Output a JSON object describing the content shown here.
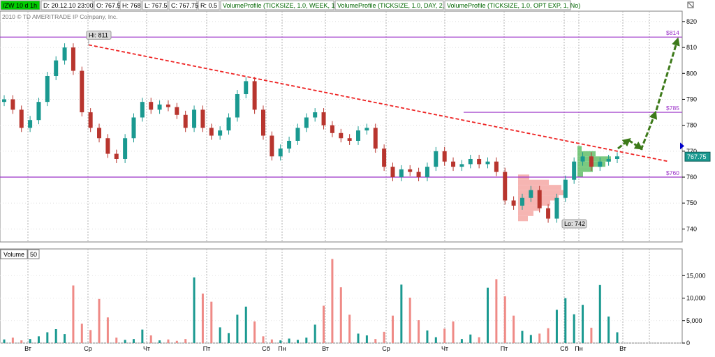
{
  "header": {
    "fields": [
      {
        "text": "/ZW 10 d 1h",
        "color": "#000000",
        "bg": "#00cc00"
      },
      {
        "text": "D: 20.12.10 23:00",
        "color": "#000000",
        "bg": "#ffffff"
      },
      {
        "text": "O: 767.5",
        "color": "#000000",
        "bg": "#ffffff"
      },
      {
        "text": "H: 768",
        "color": "#000000",
        "bg": "#ffffff"
      },
      {
        "text": "L: 767.5",
        "color": "#000000",
        "bg": "#ffffff"
      },
      {
        "text": "C: 767.75",
        "color": "#000000",
        "bg": "#ffffff"
      },
      {
        "text": "R: 0.5",
        "color": "#000000",
        "bg": "#ffffff"
      },
      {
        "text": "VolumeProfile (TICKSIZE, 1.0, WEEK, 1, No)",
        "color": "#006600",
        "bg": "#ffffff"
      },
      {
        "text": "VolumeProfile (TICKSIZE, 1.0, DAY, 2, No)",
        "color": "#006600",
        "bg": "#ffffff"
      },
      {
        "text": "VolumeProfile (TICKSIZE, 1.0, OPT EXP, 1, No)",
        "color": "#006600",
        "bg": "#ffffff"
      }
    ]
  },
  "copyright": "2010 © TD AMERITRADE IP Company, Inc.",
  "volume_panel": {
    "label": "Volume",
    "count": "50"
  },
  "colors": {
    "grid": "#b0b0b0",
    "up": "#1a9990",
    "down": "#b8352e",
    "vol_up": "#1a9990",
    "vol_down": "#ef8a86",
    "levels": "#9b30c8",
    "trend": "#ee2222",
    "arrow": "#3d7a1a",
    "profile_red": "#f5a8a4",
    "profile_green": "#63c06a"
  },
  "chart_data": [
    {
      "type": "candlestick",
      "title": "/ZW 10 d 1h",
      "x_tick_labels": [
        "Вт",
        "Ср",
        "Чт",
        "Пт",
        "Сб",
        "Пн",
        "Вт",
        "Ср",
        "Чт",
        "Пт",
        "Сб",
        "Пн",
        "Вт"
      ],
      "ylim": [
        735,
        824
      ],
      "y_tick_labels": [
        "740",
        "750",
        "760",
        "770",
        "780",
        "790",
        "800",
        "810",
        "820"
      ],
      "series": [
        {
          "name": "price",
          "close": [
            790,
            786,
            779,
            782,
            789,
            799,
            805,
            810,
            801,
            785,
            779,
            775,
            769,
            767,
            775,
            783,
            789,
            786,
            788,
            787,
            784,
            779,
            786,
            779,
            776,
            778,
            783,
            792,
            797,
            786,
            776,
            768,
            771,
            774,
            779,
            783,
            785,
            780,
            777,
            775,
            774,
            778,
            779,
            771,
            764,
            760,
            763,
            762,
            760,
            764,
            770,
            766,
            764,
            765,
            767,
            765,
            766,
            762,
            751,
            749,
            752,
            755,
            748,
            744,
            752,
            759,
            766,
            768,
            764,
            766,
            767,
            768
          ]
        },
        {
          "name": "$814",
          "value": 814
        },
        {
          "name": "$785",
          "value": 785
        },
        {
          "name": "$760",
          "value": 760
        },
        {
          "name": "last",
          "value": 767.75
        }
      ],
      "annotations": {
        "high": "Hi: 811",
        "low": "Lo: 742",
        "last_price": "767.75",
        "levels": [
          "$814",
          "$785",
          "$760"
        ],
        "trendline": {
          "from": 811,
          "to": 766
        }
      }
    },
    {
      "type": "bar",
      "title": "Volume",
      "x_tick_labels": [
        "Вт",
        "Ср",
        "Чт",
        "Пт",
        "Сб",
        "Пн",
        "Вт",
        "Ср",
        "Чт",
        "Пт",
        "Сб",
        "Пн",
        "Вт"
      ],
      "ylim": [
        0,
        20000
      ],
      "y_tick_labels": [
        "0",
        "5,000",
        "10,000",
        "15,000"
      ],
      "values": [
        800,
        1200,
        600,
        900,
        1500,
        2400,
        3100,
        2000,
        12800,
        4300,
        2900,
        9800,
        5700,
        1200,
        700,
        900,
        3000,
        1700,
        600,
        800,
        500,
        900,
        14600,
        11000,
        9200,
        3500,
        2200,
        6300,
        8100,
        4800,
        1500,
        800,
        600,
        1000,
        700,
        1200,
        4100,
        8300,
        18700,
        12400,
        6300,
        2100,
        1700,
        900,
        2500,
        6100,
        13000,
        10100,
        5100,
        2800,
        1300,
        3200,
        4800,
        900,
        1900,
        1300,
        12300,
        14200,
        10400,
        6100,
        2700,
        1800,
        2100,
        3300,
        7400,
        10000,
        6400,
        8500,
        3400,
        12900,
        5900,
        2400
      ]
    }
  ]
}
